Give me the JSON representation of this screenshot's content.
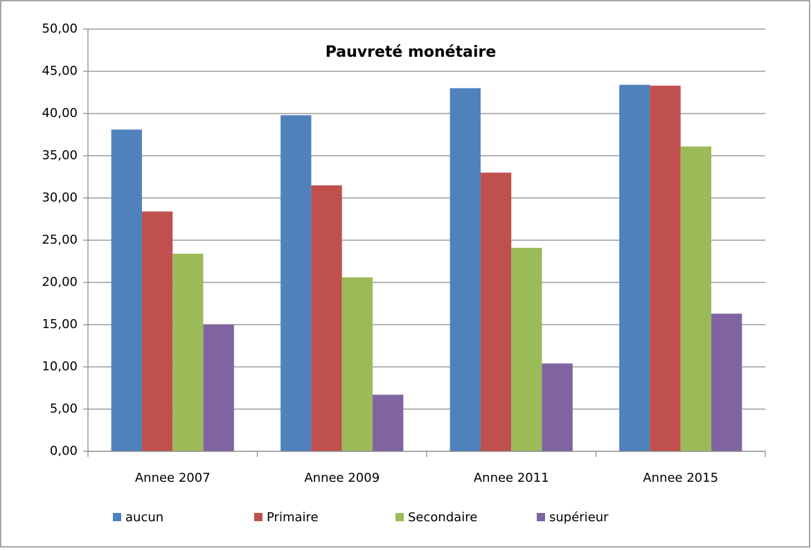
{
  "chart_data": {
    "type": "bar",
    "title": "Pauvreté monétaire",
    "categories": [
      "Annee 2007",
      "Annee 2009",
      "Annee 2011",
      "Annee 2015"
    ],
    "series": [
      {
        "name": "aucun",
        "color": "#4f81bd",
        "values": [
          38.1,
          39.8,
          43.0,
          43.4
        ]
      },
      {
        "name": "Primaire",
        "color": "#c0504d",
        "values": [
          28.4,
          31.5,
          33.0,
          43.3
        ]
      },
      {
        "name": "Secondaire",
        "color": "#9bbb59",
        "values": [
          23.4,
          20.6,
          24.1,
          36.1
        ]
      },
      {
        "name": "supérieur",
        "color": "#8064a2",
        "values": [
          15.0,
          6.7,
          10.4,
          16.3
        ]
      }
    ],
    "ylim": [
      0,
      50
    ],
    "yticks": [
      {
        "value": 0,
        "label": "0,00"
      },
      {
        "value": 5,
        "label": "5,00"
      },
      {
        "value": 10,
        "label": "10,00"
      },
      {
        "value": 15,
        "label": "15,00"
      },
      {
        "value": 20,
        "label": "20,00"
      },
      {
        "value": 25,
        "label": "25,00"
      },
      {
        "value": 30,
        "label": "30,00"
      },
      {
        "value": 35,
        "label": "35,00"
      },
      {
        "value": 40,
        "label": "40,00"
      },
      {
        "value": 45,
        "label": "45,00"
      },
      {
        "value": 50,
        "label": "50,00"
      }
    ],
    "grid": true,
    "legend": "bottom"
  }
}
